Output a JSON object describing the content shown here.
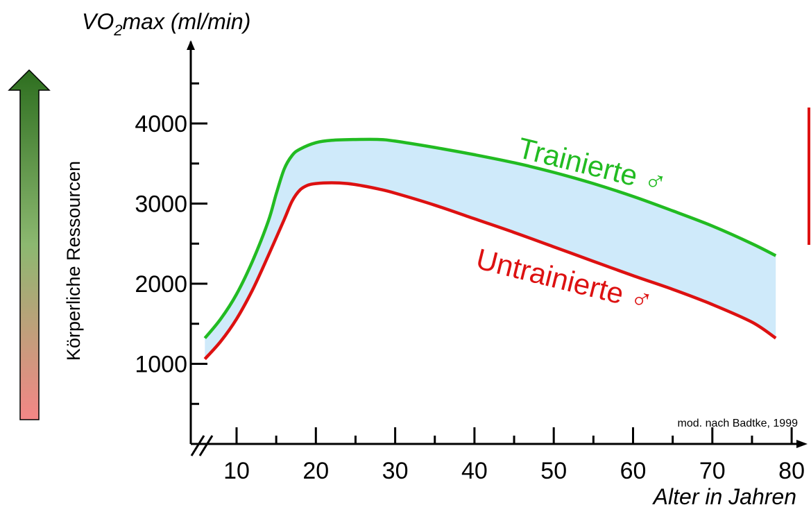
{
  "chart_data": {
    "type": "area",
    "ylabel_main": "VO",
    "ylabel_sub": "2",
    "ylabel_rest": "max (ml/min)",
    "xlabel": "Alter in Jahren",
    "x_ticks": [
      10,
      20,
      30,
      40,
      50,
      60,
      70,
      80
    ],
    "x_tick_labels": [
      "10",
      "20",
      "30",
      "40",
      "50",
      "60",
      "70",
      "80"
    ],
    "y_ticks": [
      1000,
      2000,
      3000,
      4000
    ],
    "y_tick_labels": [
      "1000",
      "2000",
      "3000",
      "4000"
    ],
    "xlim": [
      4,
      82
    ],
    "ylim": [
      0,
      5000
    ],
    "x_axis_break": true,
    "band_color": "#cfeafa",
    "series": [
      {
        "name": "Trainierte ♂",
        "color": "#22bb22",
        "x": [
          6,
          8,
          10,
          12,
          14,
          15,
          16,
          17,
          18,
          20,
          22,
          25,
          28,
          30,
          35,
          40,
          45,
          50,
          55,
          60,
          65,
          70,
          75,
          78
        ],
        "y": [
          1320,
          1560,
          1870,
          2280,
          2780,
          3120,
          3430,
          3600,
          3680,
          3760,
          3790,
          3800,
          3800,
          3780,
          3700,
          3610,
          3510,
          3390,
          3250,
          3090,
          2910,
          2720,
          2500,
          2350
        ]
      },
      {
        "name": "Untrainierte ♂",
        "color": "#dd1111",
        "x": [
          6,
          8,
          10,
          12,
          14,
          16,
          17,
          18,
          19,
          20,
          22,
          24,
          26,
          28,
          30,
          35,
          40,
          45,
          50,
          55,
          60,
          65,
          70,
          75,
          78
        ],
        "y": [
          1060,
          1280,
          1560,
          1920,
          2350,
          2800,
          3030,
          3170,
          3230,
          3250,
          3260,
          3250,
          3220,
          3180,
          3130,
          2980,
          2810,
          2640,
          2460,
          2280,
          2100,
          1930,
          1740,
          1520,
          1320
        ]
      }
    ],
    "source": "mod. nach Badtke, 1999",
    "side_axis_label": "Körperliche Ressourcen",
    "side_arrow_colors": {
      "top": "#2d6e1f",
      "middle": "#8cb870",
      "bottom": "#f48686"
    }
  }
}
